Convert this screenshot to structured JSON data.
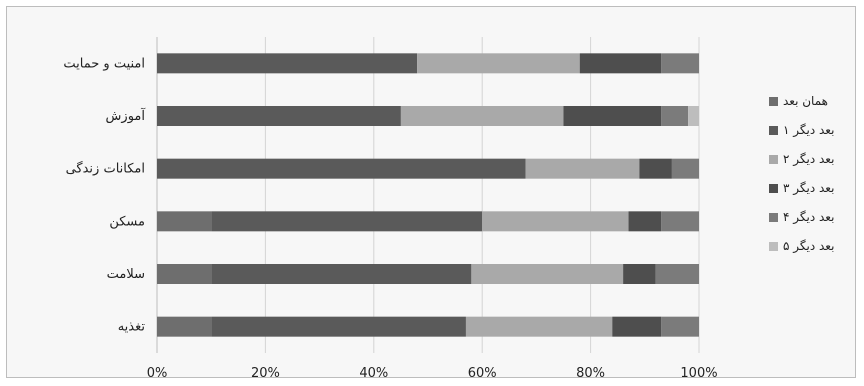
{
  "chart_data": {
    "type": "bar",
    "orientation": "horizontal",
    "stacked": "percent",
    "categories": [
      "امنیت و حمایت",
      "آموزش",
      "امکانات زندگی",
      "مسکن",
      "سلامت",
      "تغذیه"
    ],
    "series": [
      {
        "name": "همان بعد",
        "values": [
          0,
          0,
          0,
          10,
          10,
          10
        ],
        "color": "#6e6e6e"
      },
      {
        "name": "۱ بعد دیگر",
        "values": [
          48,
          45,
          68,
          50,
          48,
          47
        ],
        "color": "#5a5a5a"
      },
      {
        "name": "۲ بعد دیگر",
        "values": [
          30,
          30,
          21,
          27,
          28,
          27
        ],
        "color": "#a9a9a9"
      },
      {
        "name": "۳ بعد دیگر",
        "values": [
          15,
          18,
          6,
          6,
          6,
          9
        ],
        "color": "#4e4e4e"
      },
      {
        "name": "۴ بعد دیگر",
        "values": [
          7,
          5,
          5,
          7,
          8,
          7
        ],
        "color": "#7b7b7b"
      },
      {
        "name": "۵ بعد دیگر",
        "values": [
          0,
          2,
          0,
          0,
          0,
          0
        ],
        "color": "#bdbdbd"
      }
    ],
    "xlim": [
      0,
      100
    ],
    "x_ticks": [
      "0%",
      "20%",
      "40%",
      "60%",
      "80%",
      "100%"
    ],
    "grid": true,
    "legend_position": "right"
  }
}
